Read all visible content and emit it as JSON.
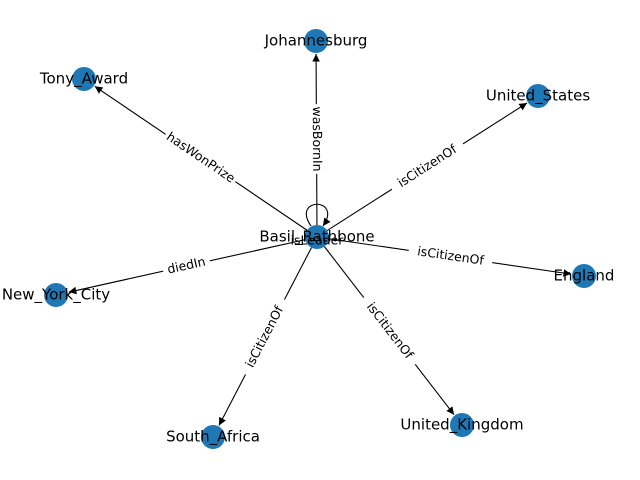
{
  "graph": {
    "node_color": "#1f77b4",
    "edge_color": "#000000",
    "center": {
      "id": "basil",
      "label": "Basil_Rathbone"
    },
    "nodes": [
      {
        "id": "basil",
        "label": "Basil_Rathbone"
      },
      {
        "id": "johannesburg",
        "label": "Johannesburg"
      },
      {
        "id": "tony",
        "label": "Tony_Award"
      },
      {
        "id": "us",
        "label": "United_States"
      },
      {
        "id": "nyc",
        "label": "New_York_City"
      },
      {
        "id": "england",
        "label": "England"
      },
      {
        "id": "sa",
        "label": "South_Africa"
      },
      {
        "id": "uk",
        "label": "United_Kingdom"
      }
    ],
    "edges": [
      {
        "source": "basil",
        "target": "johannesburg",
        "label": "wasBornIn"
      },
      {
        "source": "basil",
        "target": "tony",
        "label": "hasWonPrize"
      },
      {
        "source": "basil",
        "target": "us",
        "label": "isCitizenOf"
      },
      {
        "source": "basil",
        "target": "nyc",
        "label": "diedIn"
      },
      {
        "source": "basil",
        "target": "england",
        "label": "isCitizenOf"
      },
      {
        "source": "basil",
        "target": "sa",
        "label": "isCitizenOf"
      },
      {
        "source": "basil",
        "target": "uk",
        "label": "isCitizenOf"
      },
      {
        "source": "basil",
        "target": "basil",
        "label": "isLeader"
      }
    ]
  }
}
